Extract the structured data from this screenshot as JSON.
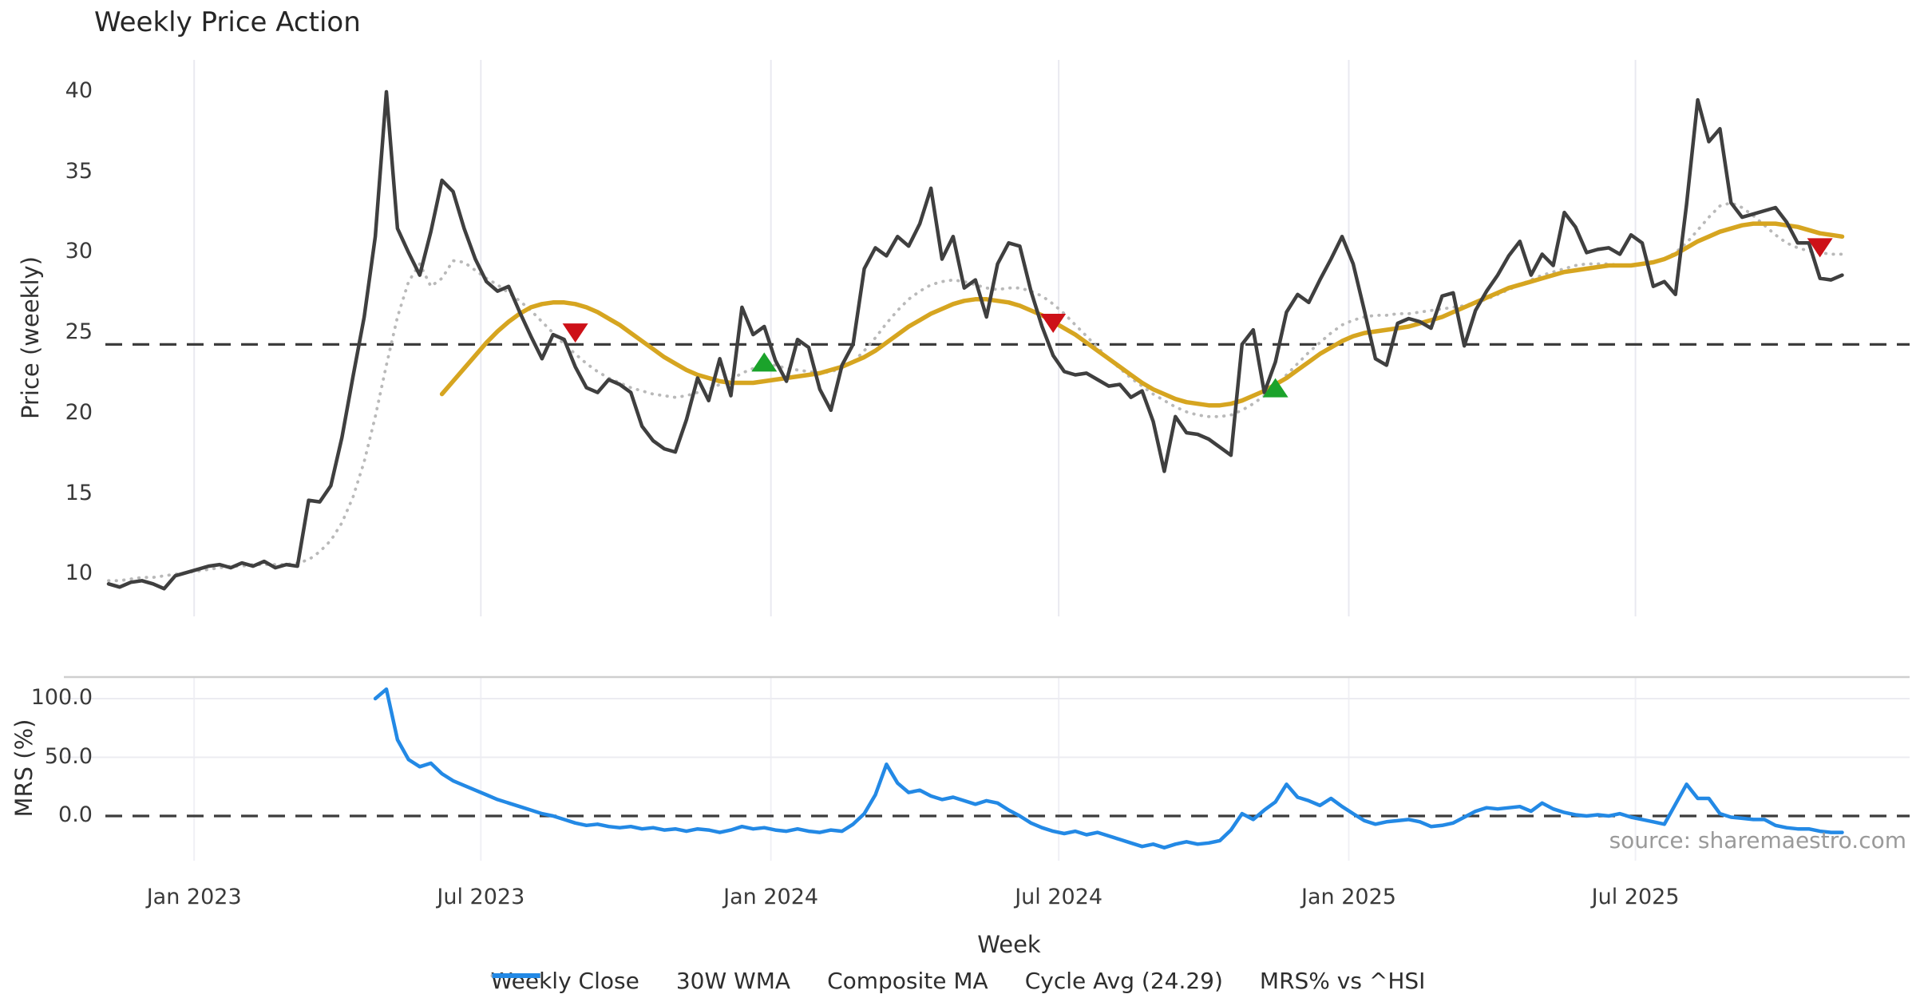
{
  "title": "Weekly Price Action",
  "source_note": "source: sharemaestro.com",
  "legend": [
    {
      "label": "Weekly Close",
      "style": "solid",
      "color": "#3f3f3f"
    },
    {
      "label": "30W WMA",
      "style": "solid",
      "color": "#d6a520"
    },
    {
      "label": "Composite MA",
      "style": "dotted",
      "color": "#b9b9b9"
    },
    {
      "label": "Cycle Avg (24.29)",
      "style": "dashed",
      "color": "#3c3c3c"
    },
    {
      "label": "MRS% vs ^HSI",
      "style": "solid",
      "color": "#2389e5"
    }
  ],
  "chart_data": [
    {
      "type": "line",
      "panel": "price",
      "title": "Weekly Price Action",
      "ylabel": "Price (weekly)",
      "yticks": [
        10,
        15,
        20,
        25,
        30,
        35,
        40
      ],
      "ylim": [
        7.4,
        42.0
      ],
      "grid": "vertical-light",
      "cycle_avg": 24.29,
      "x_axis": {
        "xlabel": "Week",
        "tick_labels": [
          "Jan 2023",
          "Jul 2023",
          "Jan 2024",
          "Jul 2024",
          "Jan 2025",
          "Jul 2025"
        ],
        "tick_weeks": [
          7.7,
          33.5,
          59.6,
          85.5,
          111.6,
          137.4
        ],
        "note": "x unit = week index, week 0 = early Nov 2022, ~158 weeks total"
      },
      "series": [
        {
          "name": "Weekly Close",
          "color": "#3f3f3f",
          "style": "solid",
          "width": 4.5,
          "start_week": 0,
          "values": [
            9.4,
            9.2,
            9.5,
            9.6,
            9.4,
            9.1,
            9.9,
            10.1,
            10.3,
            10.5,
            10.6,
            10.4,
            10.7,
            10.5,
            10.8,
            10.4,
            10.6,
            10.5,
            14.6,
            14.5,
            15.5,
            18.5,
            22.3,
            26.0,
            31.0,
            40.0,
            31.5,
            30.0,
            28.6,
            31.3,
            34.5,
            33.8,
            31.5,
            29.6,
            28.2,
            27.6,
            27.9,
            26.3,
            24.8,
            23.4,
            24.9,
            24.6,
            22.9,
            21.6,
            21.3,
            22.1,
            21.8,
            21.3,
            19.2,
            18.3,
            17.8,
            17.6,
            19.6,
            22.2,
            20.8,
            23.4,
            21.1,
            26.6,
            24.9,
            25.4,
            23.3,
            22.0,
            24.6,
            24.1,
            21.5,
            20.2,
            23.0,
            24.3,
            29.0,
            30.3,
            29.8,
            31.0,
            30.4,
            31.8,
            34.0,
            29.6,
            31.0,
            27.8,
            28.3,
            26.0,
            29.3,
            30.6,
            30.4,
            27.6,
            25.4,
            23.6,
            22.6,
            22.4,
            22.5,
            22.1,
            21.7,
            21.8,
            21.0,
            21.4,
            19.5,
            16.4,
            19.8,
            18.8,
            18.7,
            18.4,
            17.9,
            17.4,
            24.3,
            25.2,
            21.3,
            23.2,
            26.3,
            27.4,
            26.9,
            28.3,
            29.6,
            31.0,
            29.3,
            26.4,
            23.4,
            23.0,
            25.6,
            25.9,
            25.7,
            25.3,
            27.3,
            27.5,
            24.2,
            26.4,
            27.6,
            28.6,
            29.8,
            30.7,
            28.6,
            29.9,
            29.2,
            32.5,
            31.6,
            30.0,
            30.2,
            30.3,
            29.9,
            31.1,
            30.6,
            27.9,
            28.2,
            27.4,
            33.0,
            39.5,
            36.9,
            37.7,
            33.1,
            32.2,
            32.4,
            32.6,
            32.8,
            31.9,
            30.6,
            30.6,
            28.4,
            28.3,
            28.6
          ]
        },
        {
          "name": "30W WMA",
          "color": "#d6a520",
          "style": "solid",
          "width": 5.5,
          "start_week": 30,
          "values": [
            21.2,
            22.0,
            22.8,
            23.6,
            24.4,
            25.1,
            25.7,
            26.2,
            26.6,
            26.8,
            26.9,
            26.9,
            26.8,
            26.6,
            26.3,
            25.9,
            25.5,
            25.0,
            24.5,
            24.0,
            23.5,
            23.1,
            22.7,
            22.4,
            22.2,
            22.0,
            21.9,
            21.9,
            21.9,
            22.0,
            22.1,
            22.2,
            22.3,
            22.4,
            22.5,
            22.7,
            22.9,
            23.2,
            23.5,
            23.9,
            24.4,
            24.9,
            25.4,
            25.8,
            26.2,
            26.5,
            26.8,
            27.0,
            27.1,
            27.1,
            27.0,
            26.9,
            26.7,
            26.4,
            26.1,
            25.7,
            25.3,
            24.9,
            24.4,
            23.9,
            23.4,
            22.9,
            22.4,
            21.9,
            21.5,
            21.2,
            20.9,
            20.7,
            20.6,
            20.5,
            20.5,
            20.6,
            20.8,
            21.1,
            21.4,
            21.8,
            22.2,
            22.7,
            23.2,
            23.7,
            24.1,
            24.5,
            24.8,
            25.0,
            25.1,
            25.2,
            25.3,
            25.4,
            25.6,
            25.8,
            26.0,
            26.3,
            26.6,
            26.9,
            27.2,
            27.5,
            27.8,
            28.0,
            28.2,
            28.4,
            28.6,
            28.8,
            28.9,
            29.0,
            29.1,
            29.2,
            29.2,
            29.2,
            29.3,
            29.4,
            29.6,
            29.9,
            30.3,
            30.7,
            31.0,
            31.3,
            31.5,
            31.7,
            31.8,
            31.8,
            31.8,
            31.7,
            31.6,
            31.4,
            31.2,
            31.1,
            31.0
          ]
        },
        {
          "name": "Composite MA",
          "color": "#b9b9b9",
          "style": "dotted",
          "width": 3.8,
          "start_week": 0,
          "values": [
            9.6,
            9.6,
            9.7,
            9.8,
            9.8,
            9.9,
            10.0,
            10.1,
            10.2,
            10.3,
            10.4,
            10.5,
            10.5,
            10.6,
            10.6,
            10.6,
            10.6,
            10.7,
            10.9,
            11.4,
            12.1,
            13.2,
            14.8,
            17.0,
            19.8,
            23.0,
            26.0,
            28.2,
            29.3,
            27.9,
            28.4,
            29.5,
            29.4,
            28.9,
            28.4,
            28.0,
            27.5,
            27.0,
            26.4,
            25.7,
            25.0,
            24.3,
            23.7,
            23.1,
            22.6,
            22.2,
            21.9,
            21.6,
            21.4,
            21.2,
            21.1,
            21.0,
            21.1,
            21.3,
            21.5,
            21.8,
            22.1,
            22.5,
            22.8,
            23.0,
            23.0,
            22.8,
            22.7,
            22.6,
            22.5,
            22.6,
            22.8,
            23.2,
            23.9,
            24.7,
            25.6,
            26.4,
            27.1,
            27.6,
            28.0,
            28.2,
            28.3,
            28.2,
            28.0,
            27.8,
            27.7,
            27.8,
            27.8,
            27.6,
            27.3,
            26.8,
            26.2,
            25.5,
            24.8,
            24.1,
            23.4,
            22.8,
            22.2,
            21.7,
            21.2,
            20.8,
            20.4,
            20.1,
            19.9,
            19.8,
            19.8,
            19.9,
            20.2,
            20.6,
            21.1,
            21.7,
            22.4,
            23.1,
            23.8,
            24.4,
            25.0,
            25.5,
            25.8,
            26.0,
            26.1,
            26.1,
            26.2,
            26.2,
            26.3,
            26.4,
            26.5,
            26.6,
            26.7,
            26.9,
            27.1,
            27.4,
            27.7,
            28.0,
            28.3,
            28.6,
            28.8,
            29.0,
            29.2,
            29.3,
            29.3,
            29.3,
            29.2,
            29.2,
            29.3,
            29.4,
            29.6,
            30.0,
            30.6,
            31.4,
            32.2,
            32.9,
            33.1,
            32.8,
            32.3,
            31.7,
            31.1,
            30.6,
            30.3,
            30.1,
            30.0,
            29.9,
            29.9
          ]
        },
        {
          "name": "Cycle Avg (24.29)",
          "color": "#3c3c3c",
          "style": "dashed",
          "width": 3.2,
          "value": 24.29
        }
      ],
      "markers": {
        "sell": {
          "shape": "triangle-down",
          "color": "#cd1118",
          "points": [
            {
              "week": 42,
              "price": 25.0
            },
            {
              "week": 85,
              "price": 25.6
            },
            {
              "week": 154,
              "price": 30.3
            }
          ]
        },
        "buy": {
          "shape": "triangle-up",
          "color": "#1ba32b",
          "points": [
            {
              "week": 59,
              "price": 23.2
            },
            {
              "week": 105,
              "price": 21.6
            }
          ]
        }
      }
    },
    {
      "type": "line",
      "panel": "mrs",
      "ylabel": "MRS (%)",
      "yticks": [
        0.0,
        50.0,
        100.0
      ],
      "zero_line": 0.0,
      "grid": "horizontal-light",
      "series": [
        {
          "name": "MRS% vs ^HSI",
          "color": "#2389e5",
          "style": "solid",
          "width": 4.5,
          "start_week": 24,
          "values": [
            100,
            108,
            65,
            48,
            42,
            45,
            36,
            30,
            26,
            22,
            18,
            14,
            11,
            8,
            5,
            2,
            0,
            -3,
            -6,
            -8,
            -7,
            -9,
            -10,
            -9,
            -11,
            -10,
            -12,
            -11,
            -13,
            -11,
            -12,
            -14,
            -12,
            -9,
            -11,
            -10,
            -12,
            -13,
            -11,
            -13,
            -14,
            -12,
            -13,
            -7,
            2,
            18,
            44,
            28,
            20,
            22,
            17,
            14,
            16,
            13,
            10,
            13,
            11,
            5,
            0,
            -6,
            -10,
            -13,
            -15,
            -13,
            -16,
            -14,
            -17,
            -20,
            -23,
            -26,
            -24,
            -27,
            -24,
            -22,
            -24,
            -23,
            -21,
            -12,
            2,
            -3,
            5,
            12,
            27,
            16,
            13,
            9,
            15,
            8,
            2,
            -4,
            -7,
            -5,
            -4,
            -3,
            -5,
            -9,
            -8,
            -6,
            -1,
            4,
            7,
            6,
            7,
            8,
            4,
            11,
            6,
            3,
            1,
            0,
            1,
            0,
            2,
            -1,
            -3,
            -5,
            -7,
            10,
            27,
            15,
            15,
            2,
            -1,
            -2,
            -3,
            -3,
            -8,
            -10,
            -11,
            -11,
            -13,
            -14,
            -14
          ]
        }
      ]
    }
  ]
}
